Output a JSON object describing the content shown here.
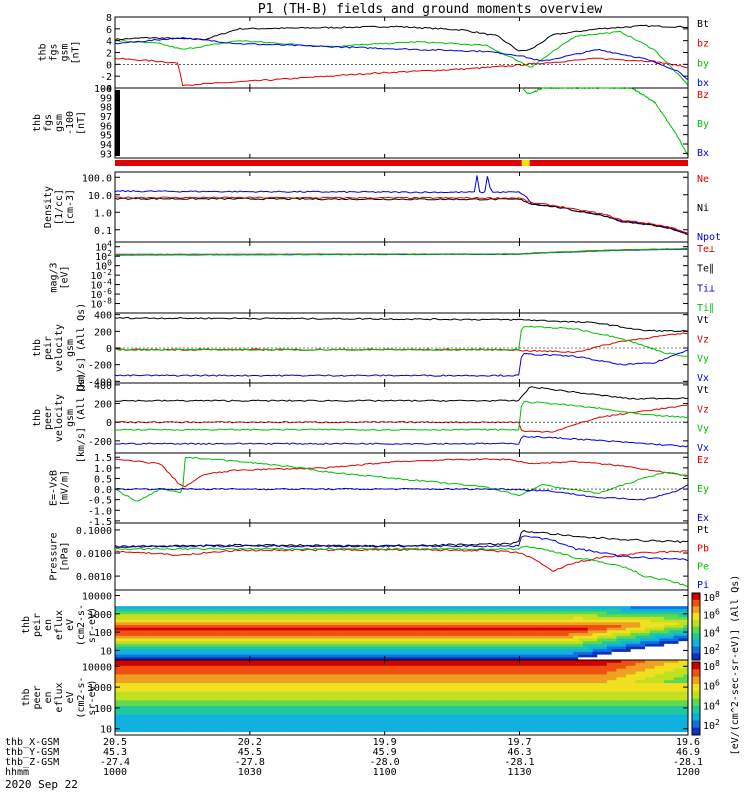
{
  "title": "P1 (TH-B) fields and ground moments overview",
  "date_label": "2020 Sep 22",
  "time_axis": {
    "range": [
      945,
      1200
    ],
    "ticks": [
      {
        "t": 945,
        "x": "20.5",
        "y": "45.3",
        "z": "-27.4",
        "hhmm": "1000"
      },
      {
        "t": 1005,
        "x": "20.2",
        "y": "45.5",
        "z": "-27.8",
        "hhmm": "1030"
      },
      {
        "t": 1065,
        "x": "19.9",
        "y": "45.9",
        "z": "-28.0",
        "hhmm": "1100"
      },
      {
        "t": 1125,
        "x": "19.7",
        "y": "46.3",
        "z": "-28.1",
        "hhmm": "1130"
      },
      {
        "t": 1200,
        "x": "19.6",
        "y": "46.9",
        "z": "-28.1",
        "hhmm": "1200"
      }
    ],
    "row_labels": [
      "thb_X-GSM",
      "thb_Y-GSM",
      "thb_Z-GSM",
      "hhmm"
    ]
  },
  "colorbar": {
    "label": "[eV/(cm^2-sec-sr-eV)] (All Qs)",
    "ticks_top": [
      "10^8",
      "10^6",
      "10^4",
      "10^2"
    ],
    "ticks_bottom": [
      "10^8",
      "10^6",
      "10^4",
      "10^2"
    ]
  },
  "colors": {
    "black": "#000000",
    "red": "#e00000",
    "green": "#00c000",
    "blue": "#0000e0",
    "yellow": "#e8e800"
  },
  "chart_data": [
    {
      "id": "bfield",
      "type": "line",
      "ylabel": [
        "thb",
        "fgs",
        "gsm",
        "[nT]"
      ],
      "ylim": [
        -4,
        8
      ],
      "yticks": [
        {
          "v": 8,
          "l": "8"
        },
        {
          "v": 6,
          "l": "6"
        },
        {
          "v": 4,
          "l": "4"
        },
        {
          "v": 2,
          "l": "2"
        },
        {
          "v": 0,
          "l": "0"
        },
        {
          "v": -2,
          "l": "-2"
        },
        {
          "v": -4,
          "l": "-4"
        }
      ],
      "series": [
        {
          "name": "Bt",
          "color": "black",
          "x": [
            945,
            960,
            985,
            1000,
            1040,
            1070,
            1100,
            1115,
            1125,
            1130,
            1140,
            1160,
            1180,
            1200
          ],
          "y": [
            4.2,
            4.5,
            4.2,
            6.0,
            6.2,
            6.4,
            5.8,
            4.8,
            2.2,
            2.5,
            5.0,
            6.0,
            6.5,
            6.3
          ]
        },
        {
          "name": "bz",
          "color": "red",
          "x": [
            945,
            965,
            973,
            975,
            990,
            1020,
            1060,
            1100,
            1120,
            1128,
            1135,
            1160,
            1185,
            1200
          ],
          "y": [
            1.0,
            0.5,
            0.2,
            -3.5,
            -3.2,
            -2.5,
            -1.5,
            -0.8,
            -0.3,
            0.0,
            0.2,
            1.0,
            0.5,
            -0.5
          ]
        },
        {
          "name": "by",
          "color": "green",
          "x": [
            945,
            965,
            975,
            1000,
            1040,
            1080,
            1110,
            1125,
            1130,
            1150,
            1170,
            1185,
            1200
          ],
          "y": [
            4.0,
            3.5,
            2.5,
            4.0,
            3.0,
            3.8,
            3.2,
            0.5,
            -0.5,
            4.8,
            5.5,
            2.5,
            -3.5
          ]
        },
        {
          "name": "bx",
          "color": "blue",
          "x": [
            945,
            975,
            1000,
            1040,
            1080,
            1110,
            1125,
            1135,
            1160,
            1180,
            1195,
            1200
          ],
          "y": [
            3.5,
            4.5,
            3.5,
            3.0,
            2.5,
            2.2,
            1.5,
            0.5,
            2.5,
            1.0,
            -1.0,
            -2.5
          ]
        }
      ],
      "legend": [
        "Bt",
        "bz",
        "by",
        "bx"
      ],
      "legend_colors": [
        "black",
        "red",
        "green",
        "blue"
      ]
    },
    {
      "id": "bzoom",
      "type": "line",
      "ylabel": [
        "thb",
        "fgs",
        "gsm",
        "-100",
        "[nT]"
      ],
      "ylim": [
        92.5,
        100
      ],
      "yticks": [
        {
          "v": 100,
          "l": "100"
        },
        {
          "v": 99,
          "l": "99"
        },
        {
          "v": 98,
          "l": "98"
        },
        {
          "v": 97,
          "l": "97"
        },
        {
          "v": 96,
          "l": "96"
        },
        {
          "v": 95,
          "l": "95"
        },
        {
          "v": 94,
          "l": "94"
        },
        {
          "v": 93,
          "l": "93"
        }
      ],
      "series": [
        {
          "name": "By",
          "color": "green",
          "x": [
            1126,
            1128,
            1130,
            1135,
            1160,
            1175,
            1185,
            1195,
            1200
          ],
          "y": [
            100,
            99.5,
            99.4,
            100,
            100,
            100,
            98.5,
            95,
            92.7
          ]
        }
      ],
      "legend": [
        "Bz",
        "By",
        "Bx"
      ],
      "legend_colors": [
        "red",
        "green",
        "blue"
      ]
    },
    {
      "id": "density",
      "type": "line",
      "log": true,
      "ylabel": [
        "Density",
        "[1/cc]",
        "[cm-3]"
      ],
      "ylim": [
        0.02,
        200
      ],
      "yticks": [
        {
          "v": 100,
          "l": "100.0"
        },
        {
          "v": 10,
          "l": "10.0"
        },
        {
          "v": 1,
          "l": "1.0"
        },
        {
          "v": 0.1,
          "l": "0.1"
        }
      ],
      "series": [
        {
          "name": "Npot",
          "color": "blue",
          "x": [
            945,
            1080,
            1105,
            1106,
            1107,
            1110,
            1111,
            1112,
            1115,
            1125,
            1130,
            1150,
            1170,
            1200
          ],
          "y": [
            16,
            14,
            14,
            150,
            14,
            14,
            150,
            14,
            14,
            14,
            3,
            1.2,
            0.3,
            0.05
          ]
        },
        {
          "name": "Ni",
          "color": "black",
          "x": [
            945,
            1100,
            1125,
            1130,
            1150,
            1170,
            1200
          ],
          "y": [
            6,
            5.5,
            5.5,
            3,
            1.2,
            0.3,
            0.05
          ]
        },
        {
          "name": "Ne",
          "color": "red",
          "x": [
            945,
            1100,
            1125,
            1130,
            1150,
            1170,
            1200
          ],
          "y": [
            7,
            6.5,
            6.5,
            3.5,
            1.4,
            0.35,
            0.06
          ]
        }
      ],
      "legend": [
        "Ne",
        "Ni",
        "Npot"
      ],
      "legend_colors": [
        "red",
        "black",
        "blue"
      ]
    },
    {
      "id": "temp",
      "type": "line",
      "log": true,
      "ylabel": [
        "mag/3",
        "[eV]"
      ],
      "ylim": [
        1e-10,
        100000.0
      ],
      "yticks": [
        {
          "v": 10000.0,
          "l": "10^4"
        },
        {
          "v": 100.0,
          "l": "10^2"
        },
        {
          "v": 1,
          "l": "10^0"
        },
        {
          "v": 0.01,
          "l": "10^-2"
        },
        {
          "v": 0.0001,
          "l": "10^-4"
        },
        {
          "v": 1e-06,
          "l": "10^-6"
        },
        {
          "v": 1e-08,
          "l": "10^-8"
        }
      ],
      "series": [
        {
          "name": "Te⊥",
          "color": "red",
          "x": [
            945,
            1125,
            1150,
            1200
          ],
          "y": [
            250,
            300,
            1000,
            4000
          ]
        },
        {
          "name": "Ti⊥",
          "color": "blue",
          "x": [
            945,
            1125,
            1150,
            1200
          ],
          "y": [
            180,
            250,
            800,
            3000
          ]
        },
        {
          "name": "Ti∥",
          "color": "green",
          "x": [
            945,
            1125,
            1150,
            1200
          ],
          "y": [
            200,
            280,
            900,
            3500
          ]
        }
      ],
      "legend": [
        "Te⊥",
        "Te∥",
        "Ti⊥",
        "Ti∥"
      ],
      "legend_colors": [
        "red",
        "black",
        "blue",
        "green"
      ]
    },
    {
      "id": "vel1",
      "type": "line",
      "ylabel": [
        "thb",
        "peir",
        "velocity",
        "gsm",
        "[km/s] (All Qs)"
      ],
      "ylim": [
        -420,
        420
      ],
      "yticks": [
        {
          "v": 400,
          "l": "400"
        },
        {
          "v": 200,
          "l": "200"
        },
        {
          "v": 0,
          "l": "0"
        },
        {
          "v": -200,
          "l": "-200"
        },
        {
          "v": -400,
          "l": "-400"
        }
      ],
      "series": [
        {
          "name": "Vt",
          "color": "black",
          "x": [
            945,
            1060,
            1120,
            1126,
            1160,
            1180,
            1200
          ],
          "y": [
            360,
            350,
            340,
            340,
            300,
            210,
            200
          ]
        },
        {
          "name": "Vz",
          "color": "red",
          "x": [
            945,
            1120,
            1126,
            1150,
            1170,
            1190,
            1200
          ],
          "y": [
            -20,
            -20,
            -30,
            -50,
            80,
            150,
            180
          ]
        },
        {
          "name": "Vy",
          "color": "green",
          "x": [
            945,
            1125,
            1126,
            1150,
            1170,
            1190,
            1200
          ],
          "y": [
            -20,
            -20,
            260,
            230,
            120,
            -60,
            -100
          ]
        },
        {
          "name": "Vx",
          "color": "blue",
          "x": [
            945,
            1125,
            1126,
            1150,
            1170,
            1185,
            1200
          ],
          "y": [
            -330,
            -330,
            -70,
            -100,
            -200,
            -180,
            -20
          ]
        }
      ],
      "legend": [
        "Vt",
        "Vz",
        "Vy",
        "Vx"
      ],
      "legend_colors": [
        "black",
        "red",
        "green",
        "blue"
      ]
    },
    {
      "id": "vel2",
      "type": "line",
      "ylabel": [
        "thb",
        "peer",
        "velocity",
        "gsm",
        "[km/s] (All Qs)"
      ],
      "ylim": [
        -330,
        420
      ],
      "yticks": [
        {
          "v": 400,
          "l": "400"
        },
        {
          "v": 200,
          "l": "200"
        },
        {
          "v": 0,
          "l": "0"
        },
        {
          "v": -200,
          "l": "-200"
        }
      ],
      "series": [
        {
          "name": "Vt",
          "color": "black",
          "x": [
            945,
            1125,
            1126,
            1130,
            1150,
            1175,
            1200
          ],
          "y": [
            230,
            230,
            280,
            380,
            320,
            250,
            260
          ]
        },
        {
          "name": "Vz",
          "color": "red",
          "x": [
            945,
            1125,
            1126,
            1140,
            1160,
            1180,
            1200
          ],
          "y": [
            0,
            0,
            -100,
            -100,
            50,
            120,
            180
          ]
        },
        {
          "name": "Vy",
          "color": "green",
          "x": [
            945,
            1125,
            1126,
            1140,
            1160,
            1180,
            1200
          ],
          "y": [
            -80,
            -80,
            220,
            200,
            150,
            80,
            50
          ]
        },
        {
          "name": "Vx",
          "color": "blue",
          "x": [
            945,
            1125,
            1126,
            1150,
            1175,
            1200
          ],
          "y": [
            -230,
            -230,
            -150,
            -180,
            -220,
            -260
          ]
        }
      ],
      "legend": [
        "Vt",
        "Vz",
        "Vy",
        "Vx"
      ],
      "legend_colors": [
        "black",
        "red",
        "green",
        "blue"
      ]
    },
    {
      "id": "efield",
      "type": "line",
      "ylabel": [
        "E=-VxB",
        "[mV/m]"
      ],
      "ylim": [
        -1.6,
        1.7
      ],
      "yticks": [
        {
          "v": 1.5,
          "l": "1.5"
        },
        {
          "v": 1.0,
          "l": "1.0"
        },
        {
          "v": 0.5,
          "l": "0.5"
        },
        {
          "v": 0.0,
          "l": "0.0"
        },
        {
          "v": -0.5,
          "l": "-0.5"
        },
        {
          "v": -1.0,
          "l": "-1.0"
        },
        {
          "v": -1.5,
          "l": "-1.5"
        }
      ],
      "series": [
        {
          "name": "Ez",
          "color": "red",
          "x": [
            945,
            965,
            973,
            976,
            985,
            1000,
            1040,
            1070,
            1100,
            1120,
            1130,
            1150,
            1170,
            1190,
            1200
          ],
          "y": [
            1.4,
            1.2,
            0.3,
            0.1,
            0.7,
            0.9,
            1.0,
            1.3,
            1.4,
            1.4,
            1.2,
            1.3,
            1.1,
            0.8,
            0.6
          ]
        },
        {
          "name": "Ey",
          "color": "green",
          "x": [
            945,
            955,
            965,
            975,
            976,
            990,
            1020,
            1040,
            1070,
            1090,
            1110,
            1125,
            1135,
            1160,
            1180,
            1190,
            1200
          ],
          "y": [
            0.0,
            -0.6,
            0.0,
            -0.2,
            1.5,
            1.4,
            1.1,
            0.8,
            0.5,
            0.3,
            0.1,
            -0.3,
            0.2,
            -0.2,
            0.5,
            0.8,
            0.6
          ]
        },
        {
          "name": "Ex",
          "color": "blue",
          "x": [
            945,
            1120,
            1140,
            1160,
            1180,
            1195,
            1200
          ],
          "y": [
            0.0,
            0.0,
            -0.1,
            -0.4,
            -0.5,
            -0.1,
            0.2
          ]
        }
      ],
      "legend": [
        "Ez",
        "Ey",
        "Ex"
      ],
      "legend_colors": [
        "red",
        "green",
        "blue"
      ]
    },
    {
      "id": "pressure",
      "type": "line",
      "log": true,
      "ylabel": [
        "Pressure",
        "[nPa]"
      ],
      "ylim": [
        0.00025,
        0.2
      ],
      "yticks": [
        {
          "v": 0.1,
          "l": "0.1000"
        },
        {
          "v": 0.01,
          "l": "0.0100"
        },
        {
          "v": 0.001,
          "l": "0.0010"
        }
      ],
      "series": [
        {
          "name": "Pt",
          "color": "black",
          "x": [
            945,
            1000,
            1060,
            1120,
            1125,
            1126,
            1150,
            1180,
            1200
          ],
          "y": [
            0.018,
            0.022,
            0.02,
            0.025,
            0.03,
            0.09,
            0.05,
            0.035,
            0.03
          ]
        },
        {
          "name": "Pb",
          "color": "red",
          "x": [
            945,
            975,
            1000,
            1060,
            1110,
            1125,
            1135,
            1140,
            1160,
            1180,
            1200
          ],
          "y": [
            0.012,
            0.008,
            0.013,
            0.014,
            0.013,
            0.01,
            0.003,
            0.0015,
            0.006,
            0.01,
            0.012
          ]
        },
        {
          "name": "Pe",
          "color": "green",
          "x": [
            945,
            1125,
            1126,
            1150,
            1180,
            1200
          ],
          "y": [
            0.015,
            0.015,
            0.02,
            0.006,
            0.001,
            0.00035
          ]
        },
        {
          "name": "Pi",
          "color": "blue",
          "x": [
            945,
            1125,
            1126,
            1150,
            1170,
            1200
          ],
          "y": [
            0.02,
            0.02,
            0.06,
            0.015,
            0.007,
            0.005
          ]
        }
      ],
      "legend": [
        "Pt",
        "Pb",
        "Pe",
        "Pi"
      ],
      "legend_colors": [
        "black",
        "red",
        "green",
        "blue"
      ]
    },
    {
      "id": "spec_ion",
      "type": "heatmap",
      "ylabel": [
        "thb",
        "peir",
        "en",
        "eflux",
        "eV",
        "(cm2-s-",
        "sr-eV)"
      ],
      "ylim": [
        3,
        20000
      ],
      "yticks": [
        {
          "v": 10000,
          "l": "10000"
        },
        {
          "v": 1000,
          "l": "1000"
        },
        {
          "v": 100,
          "l": "100"
        },
        {
          "v": 10,
          "l": "10"
        }
      ]
    },
    {
      "id": "spec_elec",
      "type": "heatmap",
      "ylabel": [
        "thb",
        "peer",
        "en",
        "eflux",
        "eV",
        "(cm2-s-",
        "sr-eV)"
      ],
      "ylim": [
        5,
        20000
      ],
      "yticks": [
        {
          "v": 10000,
          "l": "10000"
        },
        {
          "v": 1000,
          "l": "1000"
        },
        {
          "v": 100,
          "l": "100"
        },
        {
          "v": 10,
          "l": "10"
        }
      ]
    }
  ]
}
